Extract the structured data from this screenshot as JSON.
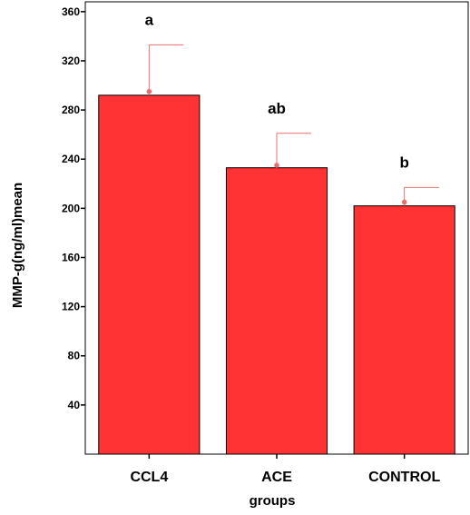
{
  "chart_data": {
    "type": "bar",
    "categories": [
      "CCL4",
      "ACE",
      "CONTROL"
    ],
    "values": [
      292,
      233,
      202
    ],
    "error_upper": [
      333,
      261,
      217
    ],
    "error_markers": [
      295,
      235,
      205
    ],
    "significance_labels": [
      "a",
      "ab",
      "b"
    ],
    "xlabel": "groups",
    "ylabel": "MMP-g(ng/ml)mean",
    "ylim": [
      0,
      368
    ],
    "yticks": [
      40,
      80,
      120,
      160,
      200,
      240,
      280,
      320,
      360
    ],
    "ytick_labels": [
      "40",
      "80",
      "120",
      "160",
      "200",
      "240",
      "280",
      "320",
      "360"
    ],
    "grid": false,
    "colors": {
      "bar_fill": "#ff3333",
      "bar_edge": "#000000",
      "error_bar": "#e87070",
      "axis": "#000000"
    }
  }
}
